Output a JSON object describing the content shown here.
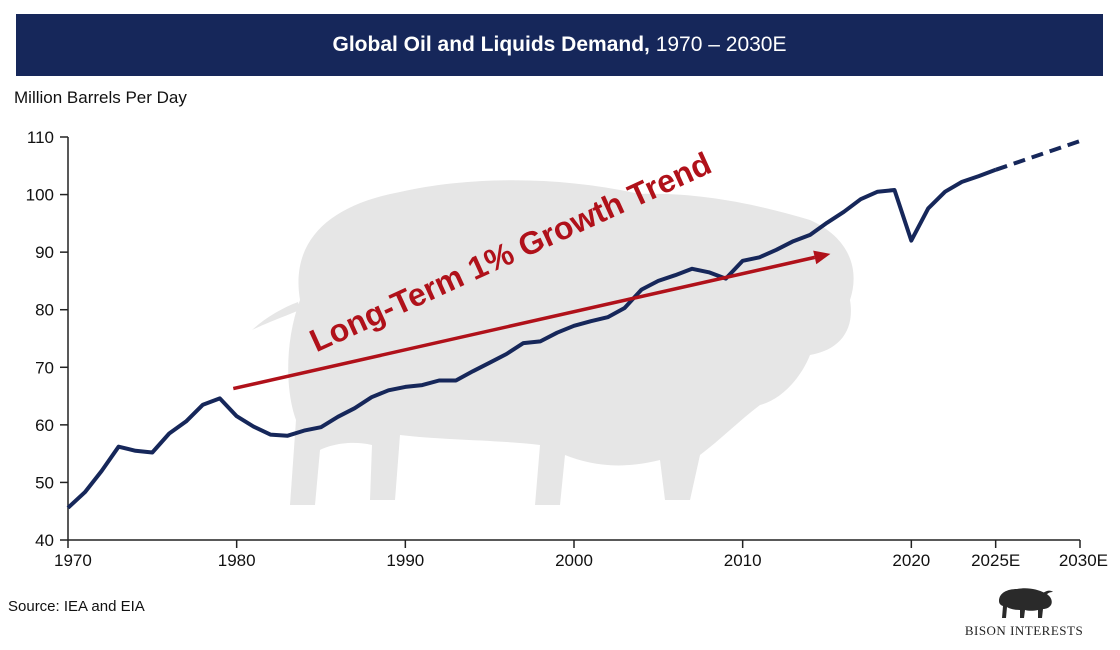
{
  "header": {
    "title_bold": "Global Oil and Liquids Demand,",
    "title_rest": "1970 – 2030E"
  },
  "footer": {
    "source": "Source: IEA and EIA"
  },
  "brand": {
    "name": "BISON INTERESTS",
    "banner_color": "#16275a",
    "line_color": "#16275a",
    "arrow_color": "#b0111a",
    "watermark_color": "#e6e6e6"
  },
  "chart_data": {
    "type": "line",
    "title": "Global Oil and Liquids Demand, 1970 – 2030E",
    "xlabel": "",
    "ylabel": "Million Barrels Per Day",
    "xlim": [
      1970,
      2030
    ],
    "ylim": [
      40,
      110
    ],
    "yticks": [
      40,
      50,
      60,
      70,
      80,
      90,
      100,
      110
    ],
    "xticks": [
      {
        "value": 1970,
        "label": "1970"
      },
      {
        "value": 1980,
        "label": "1980"
      },
      {
        "value": 1990,
        "label": "1990"
      },
      {
        "value": 2000,
        "label": "2000"
      },
      {
        "value": 2010,
        "label": "2010"
      },
      {
        "value": 2020,
        "label": "2020"
      },
      {
        "value": 2025,
        "label": "2025E"
      },
      {
        "value": 2030,
        "label": "2030E"
      }
    ],
    "series": [
      {
        "name": "Actual demand",
        "style": "solid",
        "x": [
          1970,
          1971,
          1972,
          1973,
          1974,
          1975,
          1976,
          1977,
          1978,
          1979,
          1980,
          1981,
          1982,
          1983,
          1984,
          1985,
          1986,
          1987,
          1988,
          1989,
          1990,
          1991,
          1992,
          1993,
          1994,
          1995,
          1996,
          1997,
          1998,
          1999,
          2000,
          2001,
          2002,
          2003,
          2004,
          2005,
          2006,
          2007,
          2008,
          2009,
          2010,
          2011,
          2012,
          2013,
          2014,
          2015,
          2016,
          2017,
          2018,
          2019,
          2020,
          2021,
          2022,
          2023,
          2024,
          2025
        ],
        "values": [
          45.6,
          48.3,
          52.0,
          56.2,
          55.5,
          55.2,
          58.5,
          60.6,
          63.5,
          64.6,
          61.5,
          59.7,
          58.3,
          58.1,
          59.0,
          59.6,
          61.4,
          62.9,
          64.8,
          66.0,
          66.6,
          66.9,
          67.7,
          67.7,
          69.3,
          70.8,
          72.3,
          74.2,
          74.5,
          76.0,
          77.2,
          78.0,
          78.7,
          80.3,
          83.5,
          85.0,
          86.0,
          87.1,
          86.5,
          85.4,
          88.5,
          89.1,
          90.4,
          91.9,
          93.0,
          95.1,
          97.0,
          99.2,
          100.5,
          100.8,
          92.0,
          97.6,
          100.5,
          102.2,
          103.2,
          104.3
        ]
      },
      {
        "name": "Projection",
        "style": "dashed",
        "x": [
          2025,
          2030
        ],
        "values": [
          104.3,
          109.3
        ]
      }
    ],
    "annotations": [
      {
        "text": "Long-Term 1% Growth Trend",
        "type": "arrow",
        "from": [
          1979.8,
          66.3
        ],
        "to": [
          2015.2,
          89.7
        ]
      }
    ]
  }
}
